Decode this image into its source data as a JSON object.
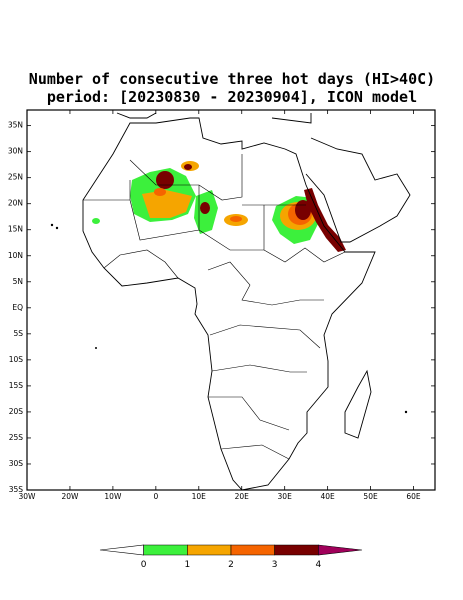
{
  "map": {
    "title": "Number of consecutive three hot days (HI>40C)",
    "subtitle": "period: [20230830 - 20230904], ICON model",
    "xlim": [
      -30,
      65
    ],
    "ylim": [
      -35,
      38
    ],
    "lat_ticks": [
      {
        "value": 35,
        "label": "35N"
      },
      {
        "value": 30,
        "label": "30N"
      },
      {
        "value": 25,
        "label": "25N"
      },
      {
        "value": 20,
        "label": "20N"
      },
      {
        "value": 15,
        "label": "15N"
      },
      {
        "value": 10,
        "label": "10N"
      },
      {
        "value": 5,
        "label": "5N"
      },
      {
        "value": 0,
        "label": "EQ"
      },
      {
        "value": -5,
        "label": "5S"
      },
      {
        "value": -10,
        "label": "10S"
      },
      {
        "value": -15,
        "label": "15S"
      },
      {
        "value": -20,
        "label": "20S"
      },
      {
        "value": -25,
        "label": "25S"
      },
      {
        "value": -30,
        "label": "30S"
      },
      {
        "value": -35,
        "label": "35S"
      }
    ],
    "lon_ticks": [
      {
        "value": -30,
        "label": "30W"
      },
      {
        "value": -20,
        "label": "20W"
      },
      {
        "value": -10,
        "label": "10W"
      },
      {
        "value": 0,
        "label": "0"
      },
      {
        "value": 10,
        "label": "10E"
      },
      {
        "value": 20,
        "label": "20E"
      },
      {
        "value": 30,
        "label": "30E"
      },
      {
        "value": 40,
        "label": "40E"
      },
      {
        "value": 50,
        "label": "50E"
      },
      {
        "value": 60,
        "label": "60E"
      }
    ],
    "colorbar": {
      "levels": [
        0,
        1,
        2,
        3,
        4
      ],
      "colors": [
        "#ffffff",
        "#3cf03c",
        "#f5a500",
        "#f56400",
        "#780000",
        "#a0005a"
      ]
    }
  }
}
